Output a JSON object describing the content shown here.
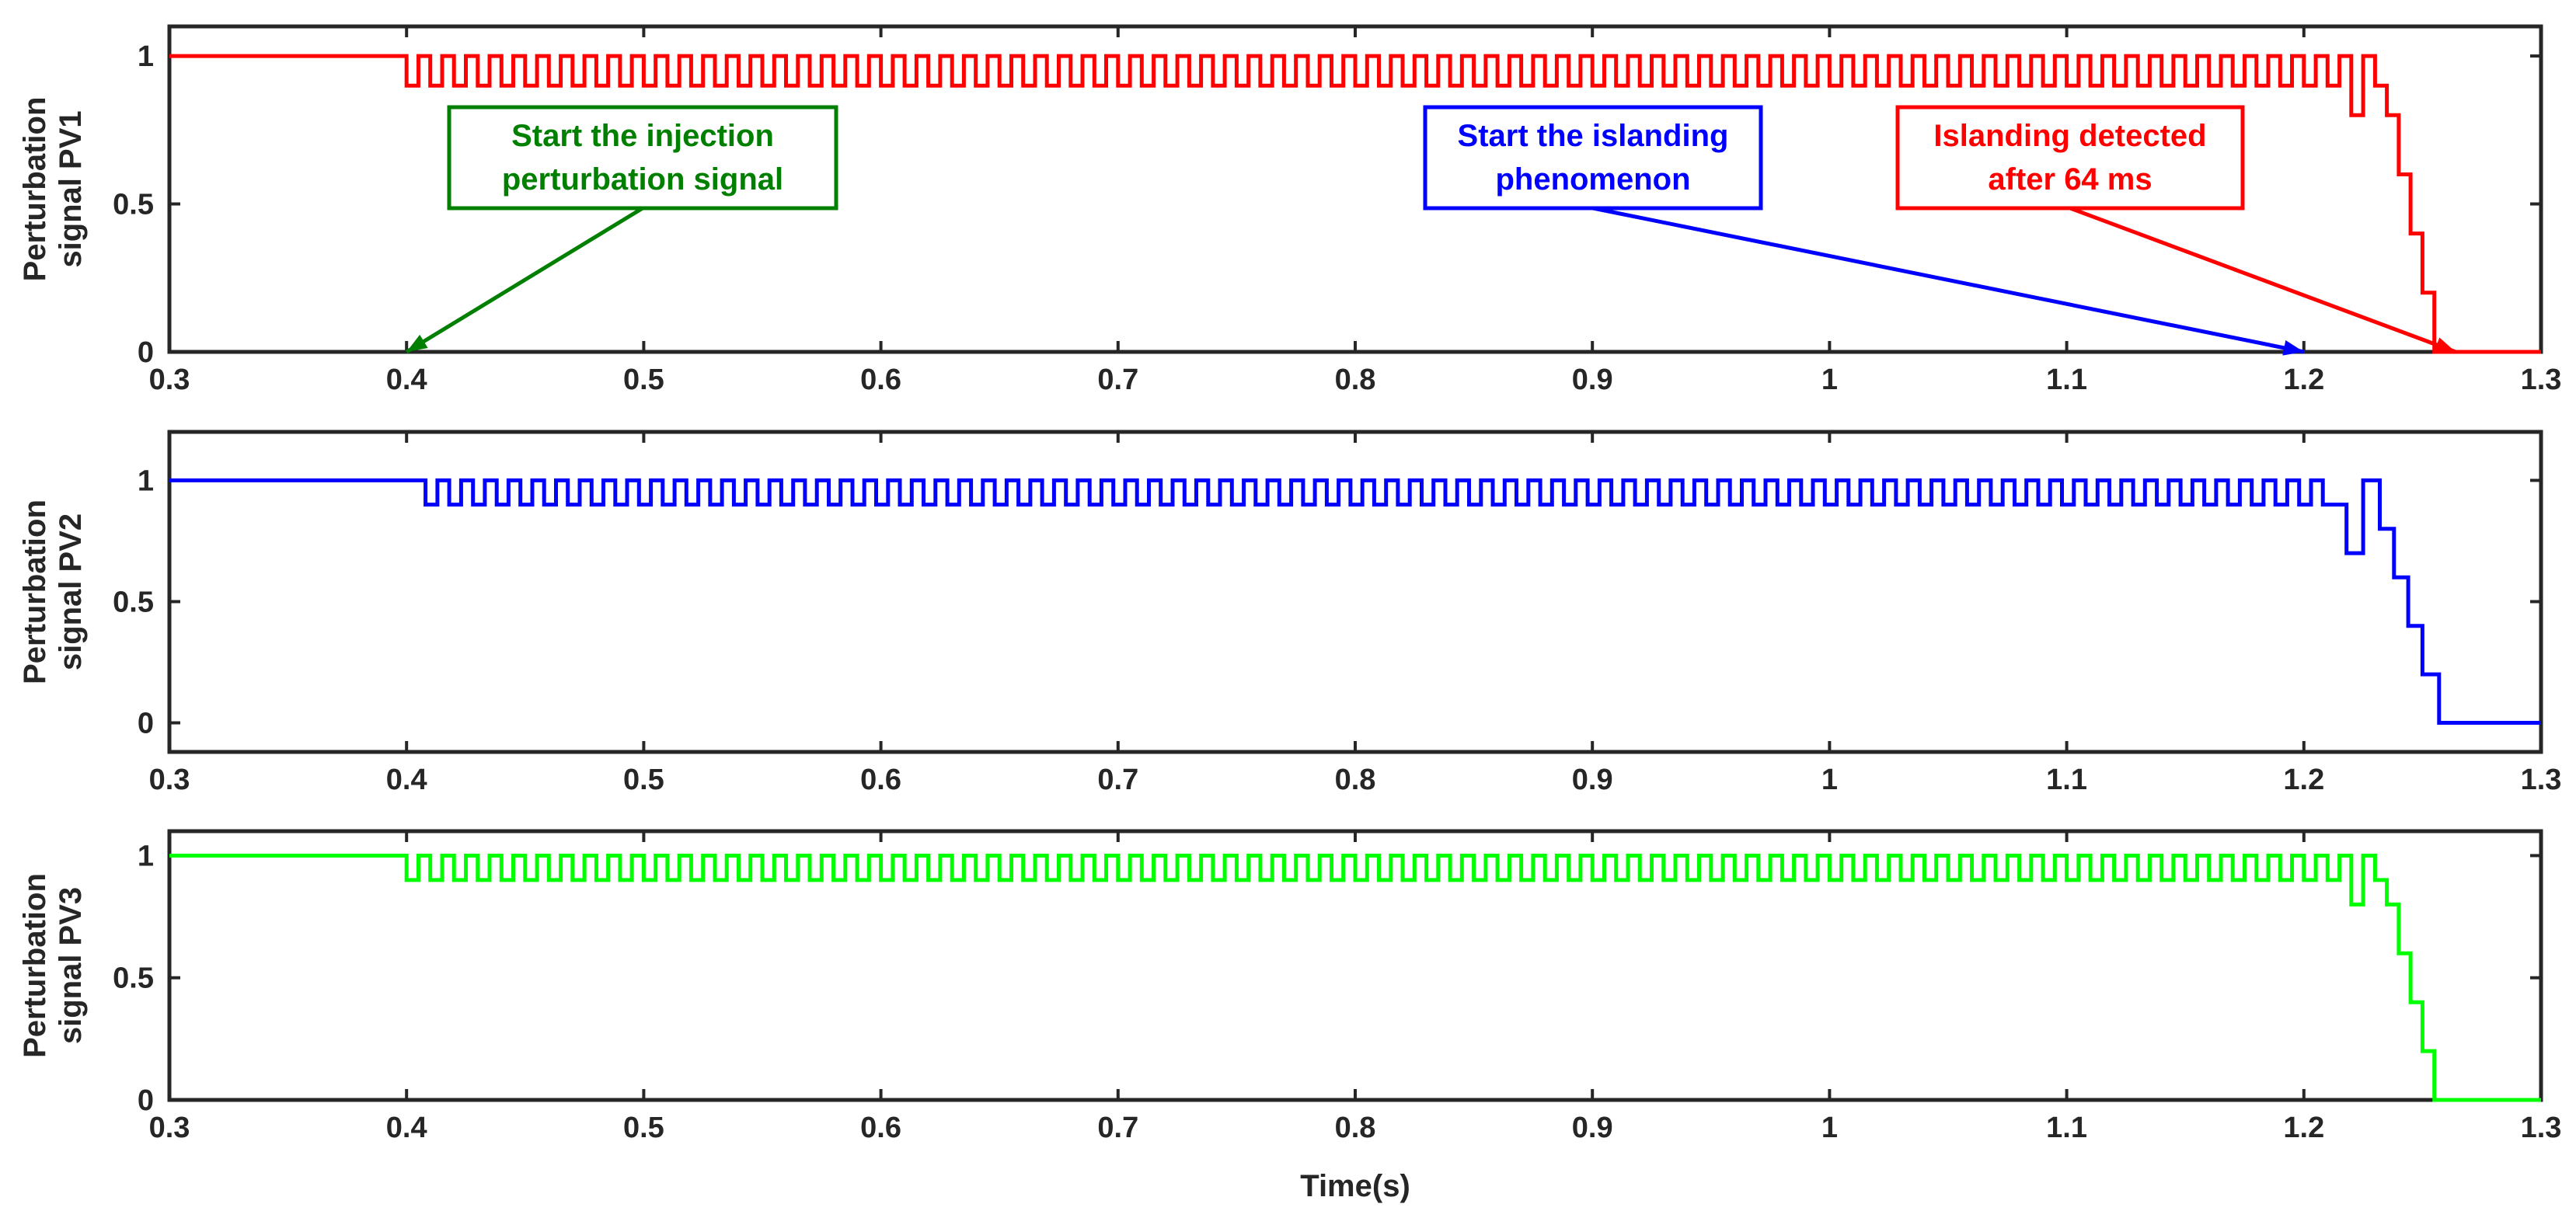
{
  "chart_data": [
    {
      "type": "line",
      "ylabel": "Perturbation signal PV1",
      "xlim": [
        0.3,
        1.3
      ],
      "ylim": [
        0,
        1.1
      ],
      "xticks": [
        "0.3",
        "0.4",
        "0.5",
        "0.6",
        "0.7",
        "0.8",
        "0.9",
        "1",
        "1.1",
        "1.2",
        "1.3"
      ],
      "yticks": [
        "0",
        "0.5",
        "1"
      ],
      "color": "#ff0000",
      "series": [
        {
          "before_injection": {
            "x": [
              0.3,
              0.4
            ],
            "y": [
              1,
              1
            ]
          },
          "perturbation_square_wave": {
            "start": 0.4,
            "end": 1.22,
            "period": 0.01,
            "high": 1,
            "low": 0.9
          },
          "tail_steps": {
            "x": [
              1.22,
              1.225,
              1.225,
              1.23,
              1.23,
              1.235,
              1.235,
              1.24,
              1.24,
              1.245,
              1.245,
              1.25,
              1.25,
              1.255,
              1.255,
              1.26,
              1.26,
              1.264,
              1.264,
              1.3
            ],
            "y": [
              0.8,
              0.8,
              1,
              1,
              0.9,
              0.9,
              0.8,
              0.8,
              0.6,
              0.6,
              0.4,
              0.4,
              0.2,
              0.2,
              0,
              0,
              0,
              0,
              0,
              0
            ]
          }
        }
      ],
      "annotations": [
        {
          "text_lines": [
            "Start the injection",
            "perturbation signal"
          ],
          "color": "#007f00",
          "arrow_to": {
            "x": 0.4,
            "y": 0
          }
        },
        {
          "text_lines": [
            "Start the islanding",
            "phenomenon"
          ],
          "color": "#0000ff",
          "arrow_to": {
            "x": 1.2,
            "y": 0
          }
        },
        {
          "text_lines": [
            "Islanding detected",
            "after 64 ms"
          ],
          "color": "#ff0000",
          "arrow_to": {
            "x": 1.264,
            "y": 0
          }
        }
      ]
    },
    {
      "type": "line",
      "ylabel": "Perturbation signal PV2",
      "xlim": [
        0.3,
        1.3
      ],
      "ylim": [
        -0.12,
        1.2
      ],
      "xticks": [
        "0.3",
        "0.4",
        "0.5",
        "0.6",
        "0.7",
        "0.8",
        "0.9",
        "1",
        "1.1",
        "1.2",
        "1.3"
      ],
      "yticks": [
        "0",
        "0.5",
        "1"
      ],
      "color": "#0000ff",
      "series": [
        {
          "before_injection": {
            "x": [
              0.3,
              0.408
            ],
            "y": [
              1,
              1
            ]
          },
          "perturbation_square_wave": {
            "start": 0.408,
            "end": 1.21,
            "period": 0.01,
            "high": 1,
            "low": 0.9
          },
          "tail_steps": {
            "x": [
              1.21,
              1.218,
              1.218,
              1.225,
              1.225,
              1.232,
              1.232,
              1.238,
              1.238,
              1.244,
              1.244,
              1.25,
              1.25,
              1.257,
              1.257,
              1.264,
              1.264,
              1.3
            ],
            "y": [
              0.9,
              0.9,
              0.7,
              0.7,
              1,
              1,
              0.8,
              0.8,
              0.6,
              0.6,
              0.4,
              0.4,
              0.2,
              0.2,
              0,
              0,
              0,
              0
            ]
          }
        }
      ]
    },
    {
      "type": "line",
      "ylabel": "Perturbation signal PV3",
      "xlabel": "Time(s)",
      "xlim": [
        0.3,
        1.3
      ],
      "ylim": [
        0,
        1.1
      ],
      "xticks": [
        "0.3",
        "0.4",
        "0.5",
        "0.6",
        "0.7",
        "0.8",
        "0.9",
        "1",
        "1.1",
        "1.2",
        "1.3"
      ],
      "yticks": [
        "0",
        "0.5",
        "1"
      ],
      "color": "#00ff00",
      "series": [
        {
          "before_injection": {
            "x": [
              0.3,
              0.4
            ],
            "y": [
              1,
              1
            ]
          },
          "perturbation_square_wave": {
            "start": 0.4,
            "end": 1.22,
            "period": 0.01,
            "high": 1,
            "low": 0.9
          },
          "tail_steps": {
            "x": [
              1.22,
              1.225,
              1.225,
              1.23,
              1.23,
              1.235,
              1.235,
              1.24,
              1.24,
              1.245,
              1.245,
              1.25,
              1.25,
              1.255,
              1.255,
              1.26,
              1.26,
              1.264,
              1.264,
              1.3
            ],
            "y": [
              0.8,
              0.8,
              1,
              1,
              0.9,
              0.9,
              0.8,
              0.8,
              0.6,
              0.6,
              0.4,
              0.4,
              0.2,
              0.2,
              0,
              0,
              0,
              0,
              0,
              0
            ]
          }
        }
      ]
    }
  ]
}
